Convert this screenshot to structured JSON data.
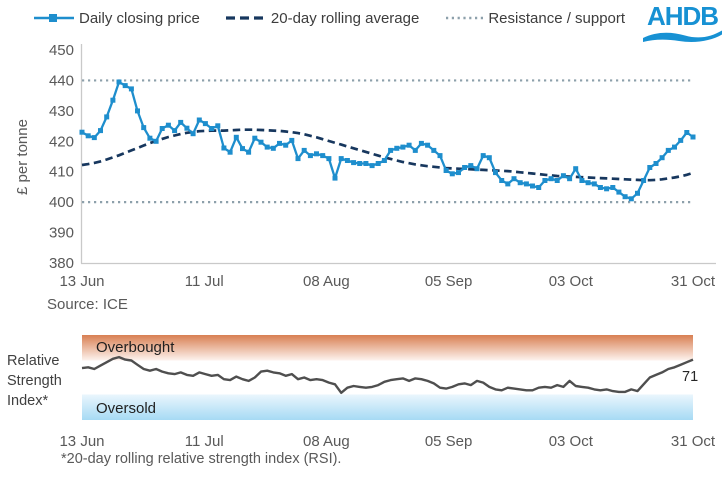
{
  "legend": {
    "items": [
      {
        "label": "Daily closing price"
      },
      {
        "label": "20-day rolling average"
      },
      {
        "label": "Resistance / support"
      }
    ]
  },
  "logo": {
    "text": "AHDB"
  },
  "source": "Source: ICE",
  "footnote": "*20-day rolling relative strength index (RSI).",
  "rsi_panel": {
    "label_lines": [
      "Relative",
      "Strength",
      "Index*"
    ],
    "overbought_label": "Overbought",
    "oversold_label": "Oversold",
    "current_value": "71"
  },
  "colors": {
    "price_blue": "#1e8ecd",
    "average_navy": "#17375e",
    "resistance_gray": "#8da0ab",
    "axis_line": "#c9c9c9",
    "axis_text": "#595959",
    "rsi_line": "#4f4f4f",
    "logo_blue": "#1791d3",
    "overbought_top": "#d87f53",
    "overbought_bottom": "#fdf3ee",
    "oversold_top": "#eaf6fd",
    "oversold_bottom": "#a6daf4"
  },
  "chart_data": [
    {
      "type": "line",
      "title": "",
      "ylabel": "£ per tonne",
      "ylim": [
        380,
        450
      ],
      "yticks": [
        380,
        390,
        400,
        410,
        420,
        430,
        440,
        450
      ],
      "x_tick_labels": [
        "13 Jun",
        "11 Jul",
        "08 Aug",
        "05 Sep",
        "03 Oct",
        "31 Oct"
      ],
      "resistance": 440,
      "support": 400,
      "grid": "off",
      "legend_position": "top",
      "series": [
        {
          "name": "Daily closing price",
          "values": [
            423,
            421.8,
            421.2,
            423.5,
            428,
            433.5,
            439.5,
            438.3,
            437.2,
            430,
            424.5,
            421,
            420,
            424.2,
            425.3,
            423.5,
            426.2,
            424.3,
            422.5,
            427,
            425.8,
            424.2,
            425.1,
            417.8,
            416.4,
            421.3,
            417.6,
            416.4,
            421,
            419.7,
            418.1,
            417.7,
            419.3,
            418.7,
            420.3,
            414.3,
            417,
            415.3,
            415.9,
            415.3,
            414.3,
            407.9,
            414.3,
            413.7,
            413,
            412.7,
            412.7,
            412,
            412.7,
            413.7,
            417,
            417.7,
            418.1,
            418.7,
            417,
            419.3,
            418.7,
            417,
            415.3,
            410.4,
            409.3,
            409.7,
            411.4,
            412,
            411,
            415.3,
            414.6,
            409.7,
            407.1,
            406,
            407.7,
            406.4,
            406,
            405.3,
            404.8,
            407.1,
            407.7,
            407.1,
            408.7,
            407.7,
            411,
            407.1,
            406.4,
            406,
            404.8,
            404.4,
            404.8,
            403.3,
            401.8,
            401.1,
            402.9,
            407.1,
            411.4,
            412.7,
            414.6,
            417,
            418.1,
            420.3,
            422.9,
            421.4
          ]
        },
        {
          "name": "20-day rolling average",
          "values": [
            412.2,
            412.5,
            412.9,
            413.4,
            414,
            414.7,
            415.4,
            416.2,
            417,
            417.8,
            418.6,
            419.4,
            420.1,
            420.8,
            421.4,
            421.9,
            422.4,
            422.8,
            423.1,
            423.3,
            423.4,
            423.5,
            423.5,
            423.5,
            423.6,
            423.7,
            423.8,
            423.8,
            423.8,
            423.7,
            423.6,
            423.5,
            423.4,
            423.2,
            423,
            422.7,
            422.3,
            421.8,
            421.3,
            420.7,
            420.1,
            419.5,
            418.9,
            418.3,
            417.7,
            417.1,
            416.5,
            415.9,
            415.3,
            414.7,
            414.2,
            413.7,
            413.2,
            412.8,
            412.4,
            412.1,
            411.8,
            411.6,
            411.4,
            411.2,
            411.1,
            411,
            410.9,
            410.8,
            410.7,
            410.6,
            410.5,
            410.4,
            410.3,
            410.2,
            410,
            409.8,
            409.6,
            409.4,
            409.2,
            409,
            408.8,
            408.6,
            408.5,
            408.4,
            408.3,
            408.2,
            408.1,
            408,
            407.9,
            407.8,
            407.7,
            407.6,
            407.5,
            407.4,
            407.3,
            407.2,
            407.2,
            407.3,
            407.5,
            407.8,
            408.1,
            408.5,
            409,
            409.6
          ]
        }
      ],
      "source": "ICE"
    },
    {
      "type": "line",
      "title": "Relative Strength Index (20-day rolling)",
      "ylim": [
        0,
        100
      ],
      "overbought_threshold": 70,
      "oversold_threshold": 30,
      "x_tick_labels": [
        "13 Jun",
        "11 Jul",
        "08 Aug",
        "05 Sep",
        "03 Oct",
        "31 Oct"
      ],
      "end_label": "71",
      "values": [
        61,
        62,
        60,
        64,
        68,
        72,
        74,
        71,
        70,
        65,
        60,
        58,
        60,
        57,
        55,
        54,
        56,
        53,
        52,
        56,
        54,
        52,
        53,
        48,
        47,
        51,
        48,
        46,
        50,
        57,
        58,
        56,
        55,
        52,
        54,
        48,
        50,
        47,
        48,
        47,
        44,
        42,
        32,
        38,
        40,
        39,
        38,
        39,
        41,
        45,
        47,
        48,
        49,
        46,
        49,
        48,
        46,
        43,
        38,
        37,
        39,
        42,
        43,
        41,
        46,
        44,
        39,
        36,
        35,
        38,
        37,
        36,
        35,
        35,
        38,
        39,
        38,
        41,
        39,
        46,
        40,
        39,
        38,
        36,
        35,
        36,
        34,
        33,
        33,
        36,
        34,
        42,
        50,
        53,
        56,
        60,
        62,
        65,
        68,
        71
      ]
    }
  ]
}
